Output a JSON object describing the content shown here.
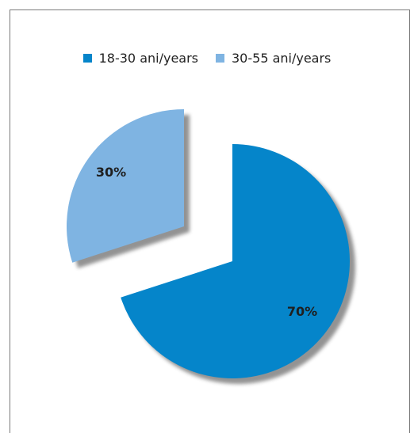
{
  "chart_data": {
    "type": "pie",
    "exploded": true,
    "series": [
      {
        "name": "18-30 ani/years",
        "value": 70,
        "label": "70%",
        "color": "#0585CA"
      },
      {
        "name": "30-55 ani/years",
        "value": 30,
        "label": "30%",
        "color": "#7FB4E2"
      }
    ],
    "legend_position": "top-center",
    "shadow": true
  }
}
